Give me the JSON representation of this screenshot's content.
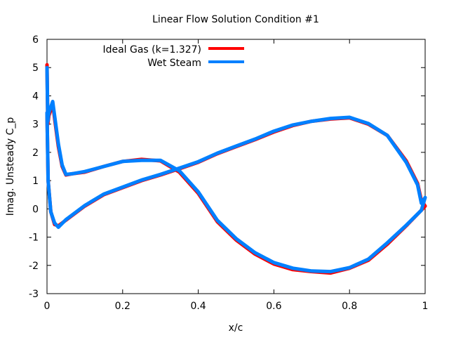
{
  "chart_data": {
    "type": "line",
    "title": "Linear Flow Solution Condition #1",
    "xlabel": "x/c",
    "ylabel": "Imag. Unsteady C_p",
    "xlim": [
      0,
      1
    ],
    "ylim": [
      -3,
      6
    ],
    "xticks": [
      "0",
      "0.2",
      "0.4",
      "0.6",
      "0.8",
      "1"
    ],
    "xtick_values": [
      0,
      0.2,
      0.4,
      0.6,
      0.8,
      1
    ],
    "yticks": [
      "-3",
      "-2",
      "-1",
      "0",
      "1",
      "2",
      "3",
      "4",
      "5",
      "6"
    ],
    "ytick_values": [
      -3,
      -2,
      -1,
      0,
      1,
      2,
      3,
      4,
      5,
      6
    ],
    "grid": false,
    "legend_position": "top-left",
    "series": [
      {
        "name": "Ideal Gas (k=1.327)",
        "color": "#ff0000",
        "x": [
          0,
          0.002,
          0.005,
          0.01,
          0.015,
          0.02,
          0.03,
          0.04,
          0.05,
          0.07,
          0.1,
          0.15,
          0.2,
          0.25,
          0.3,
          0.35,
          0.4,
          0.45,
          0.5,
          0.55,
          0.6,
          0.65,
          0.7,
          0.75,
          0.8,
          0.85,
          0.9,
          0.95,
          0.99,
          1.0,
          0.99,
          0.98,
          0.95,
          0.9,
          0.85,
          0.8,
          0.75,
          0.7,
          0.65,
          0.6,
          0.55,
          0.5,
          0.45,
          0.4,
          0.35,
          0.3,
          0.25,
          0.2,
          0.15,
          0.1,
          0.05,
          0.03,
          0.02,
          0.01,
          0.003,
          0
        ],
        "y": [
          5.1,
          3.0,
          3.3,
          3.5,
          3.75,
          3.2,
          2.2,
          1.5,
          1.2,
          1.25,
          1.3,
          1.5,
          1.68,
          1.75,
          1.7,
          1.3,
          0.55,
          -0.45,
          -1.1,
          -1.6,
          -1.95,
          -2.15,
          -2.22,
          -2.27,
          -2.1,
          -1.82,
          -1.25,
          -0.6,
          -0.05,
          0.1,
          0.3,
          0.9,
          1.7,
          2.6,
          3.0,
          3.22,
          3.18,
          3.1,
          2.95,
          2.72,
          2.45,
          2.2,
          1.95,
          1.65,
          1.42,
          1.2,
          1.0,
          0.75,
          0.5,
          0.1,
          -0.4,
          -0.6,
          -0.55,
          -0.1,
          1.0,
          3.4
        ]
      },
      {
        "name": "Wet Steam",
        "color": "#0080ff",
        "x": [
          0,
          0.002,
          0.005,
          0.01,
          0.015,
          0.02,
          0.03,
          0.04,
          0.05,
          0.07,
          0.1,
          0.15,
          0.2,
          0.25,
          0.3,
          0.35,
          0.4,
          0.45,
          0.5,
          0.55,
          0.6,
          0.65,
          0.7,
          0.75,
          0.8,
          0.85,
          0.9,
          0.95,
          0.99,
          1.0,
          0.99,
          0.98,
          0.95,
          0.9,
          0.85,
          0.8,
          0.75,
          0.7,
          0.65,
          0.6,
          0.55,
          0.5,
          0.45,
          0.4,
          0.35,
          0.3,
          0.25,
          0.2,
          0.15,
          0.1,
          0.05,
          0.03,
          0.02,
          0.01,
          0.003,
          0
        ],
        "y": [
          5.0,
          3.1,
          3.4,
          3.6,
          3.8,
          3.3,
          2.3,
          1.55,
          1.22,
          1.25,
          1.32,
          1.5,
          1.68,
          1.72,
          1.72,
          1.35,
          0.6,
          -0.4,
          -1.05,
          -1.55,
          -1.9,
          -2.1,
          -2.2,
          -2.22,
          -2.08,
          -1.78,
          -1.2,
          -0.58,
          -0.05,
          0.4,
          0.2,
          0.85,
          1.65,
          2.6,
          3.02,
          3.24,
          3.2,
          3.1,
          2.97,
          2.75,
          2.47,
          2.22,
          1.97,
          1.67,
          1.44,
          1.22,
          1.02,
          0.77,
          0.52,
          0.12,
          -0.38,
          -0.65,
          -0.5,
          -0.1,
          1.0,
          3.4
        ]
      }
    ]
  }
}
